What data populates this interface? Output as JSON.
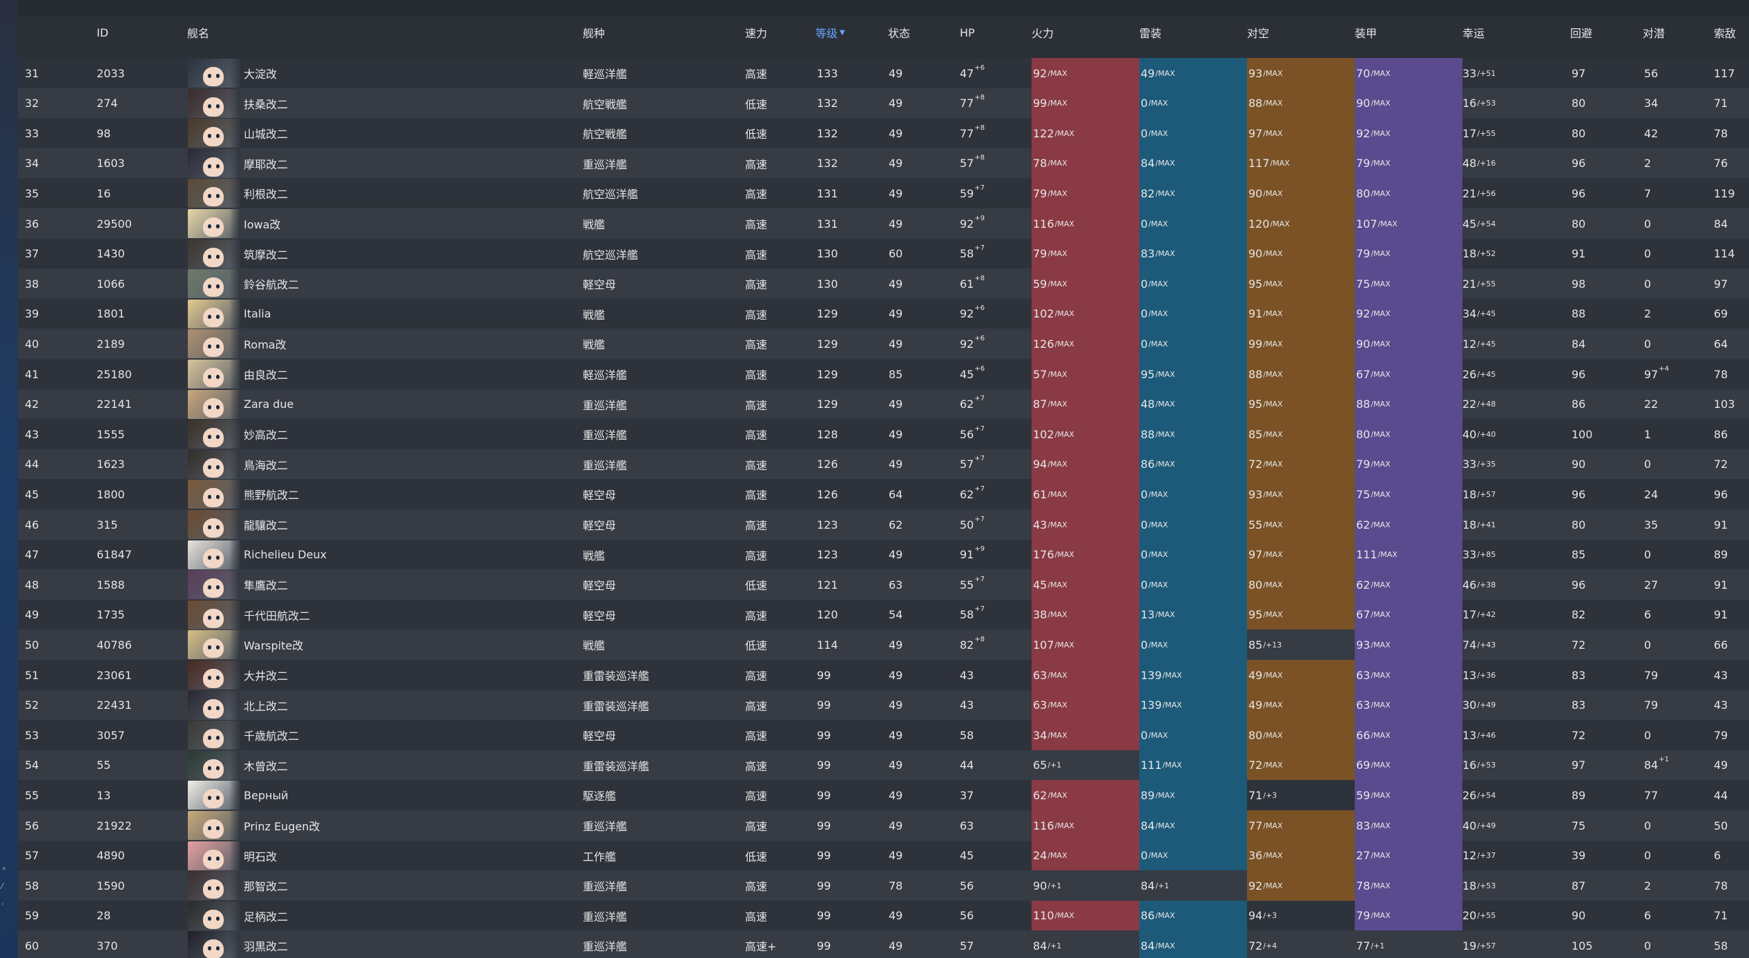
{
  "colors": {
    "page_bg": "#2b2f36",
    "row_odd": "#2e323a",
    "row_even": "#363b44",
    "accent_sort": "#6aa7ff",
    "firepower_max_bg": "#8a3a44",
    "torpedo_max_bg": "#1d5a7a",
    "antiair_max_bg": "#7a5226",
    "armor_max_bg": "#5a4a8e"
  },
  "table": {
    "headers": {
      "id": "ID",
      "name": "舰名",
      "type": "舰种",
      "speed": "速力",
      "level": "等级",
      "condition": "状态",
      "hp": "HP",
      "firepower": "火力",
      "torpedo": "雷装",
      "antiair": "对空",
      "armor": "装甲",
      "luck": "幸运",
      "evasion": "回避",
      "asw": "对潜",
      "los": "索敌"
    },
    "sort_column": "level",
    "sort_icon": "caret-down-icon",
    "rows": [
      {
        "no": "31",
        "id": "2033",
        "name": "大淀改",
        "type": "軽巡洋艦",
        "speed": "高速",
        "level": "133",
        "cond": "49",
        "hp": "47",
        "hp_sup": "+6",
        "fp": "92",
        "fp_s": "/MAX",
        "fp_max": true,
        "tp": "49",
        "tp_s": "/MAX",
        "tp_max": true,
        "aa": "93",
        "aa_s": "/MAX",
        "aa_max": true,
        "ar": "70",
        "ar_s": "/MAX",
        "ar_max": true,
        "luck": "33",
        "luck_s": "/+51",
        "ev": "97",
        "asw": "56",
        "asw_sup": "",
        "los": "117"
      },
      {
        "no": "32",
        "id": "274",
        "name": "扶桑改二",
        "type": "航空戦艦",
        "speed": "低速",
        "level": "132",
        "cond": "49",
        "hp": "77",
        "hp_sup": "+8",
        "fp": "99",
        "fp_s": "/MAX",
        "fp_max": true,
        "tp": "0",
        "tp_s": "/MAX",
        "tp_max": true,
        "aa": "88",
        "aa_s": "/MAX",
        "aa_max": true,
        "ar": "90",
        "ar_s": "/MAX",
        "ar_max": true,
        "luck": "16",
        "luck_s": "/+53",
        "ev": "80",
        "asw": "34",
        "asw_sup": "",
        "los": "71"
      },
      {
        "no": "33",
        "id": "98",
        "name": "山城改二",
        "type": "航空戦艦",
        "speed": "低速",
        "level": "132",
        "cond": "49",
        "hp": "77",
        "hp_sup": "+8",
        "fp": "122",
        "fp_s": "/MAX",
        "fp_max": true,
        "tp": "0",
        "tp_s": "/MAX",
        "tp_max": true,
        "aa": "97",
        "aa_s": "/MAX",
        "aa_max": true,
        "ar": "92",
        "ar_s": "/MAX",
        "ar_max": true,
        "luck": "17",
        "luck_s": "/+55",
        "ev": "80",
        "asw": "42",
        "asw_sup": "",
        "los": "78"
      },
      {
        "no": "34",
        "id": "1603",
        "name": "摩耶改二",
        "type": "重巡洋艦",
        "speed": "高速",
        "level": "132",
        "cond": "49",
        "hp": "57",
        "hp_sup": "+8",
        "fp": "78",
        "fp_s": "/MAX",
        "fp_max": true,
        "tp": "84",
        "tp_s": "/MAX",
        "tp_max": true,
        "aa": "117",
        "aa_s": "/MAX",
        "aa_max": true,
        "ar": "79",
        "ar_s": "/MAX",
        "ar_max": true,
        "luck": "48",
        "luck_s": "/+16",
        "ev": "96",
        "asw": "2",
        "asw_sup": "",
        "los": "76"
      },
      {
        "no": "35",
        "id": "16",
        "name": "利根改二",
        "type": "航空巡洋艦",
        "speed": "高速",
        "level": "131",
        "cond": "49",
        "hp": "59",
        "hp_sup": "+7",
        "fp": "79",
        "fp_s": "/MAX",
        "fp_max": true,
        "tp": "82",
        "tp_s": "/MAX",
        "tp_max": true,
        "aa": "90",
        "aa_s": "/MAX",
        "aa_max": true,
        "ar": "80",
        "ar_s": "/MAX",
        "ar_max": true,
        "luck": "21",
        "luck_s": "/+56",
        "ev": "96",
        "asw": "7",
        "asw_sup": "",
        "los": "119"
      },
      {
        "no": "36",
        "id": "29500",
        "name": "Iowa改",
        "type": "戦艦",
        "speed": "高速",
        "level": "131",
        "cond": "49",
        "hp": "92",
        "hp_sup": "+9",
        "fp": "116",
        "fp_s": "/MAX",
        "fp_max": true,
        "tp": "0",
        "tp_s": "/MAX",
        "tp_max": true,
        "aa": "120",
        "aa_s": "/MAX",
        "aa_max": true,
        "ar": "107",
        "ar_s": "/MAX",
        "ar_max": true,
        "luck": "45",
        "luck_s": "/+54",
        "ev": "80",
        "asw": "0",
        "asw_sup": "",
        "los": "84"
      },
      {
        "no": "37",
        "id": "1430",
        "name": "筑摩改二",
        "type": "航空巡洋艦",
        "speed": "高速",
        "level": "130",
        "cond": "60",
        "hp": "58",
        "hp_sup": "+7",
        "fp": "79",
        "fp_s": "/MAX",
        "fp_max": true,
        "tp": "83",
        "tp_s": "/MAX",
        "tp_max": true,
        "aa": "90",
        "aa_s": "/MAX",
        "aa_max": true,
        "ar": "79",
        "ar_s": "/MAX",
        "ar_max": true,
        "luck": "18",
        "luck_s": "/+52",
        "ev": "91",
        "asw": "0",
        "asw_sup": "",
        "los": "114"
      },
      {
        "no": "38",
        "id": "1066",
        "name": "鈴谷航改二",
        "type": "軽空母",
        "speed": "高速",
        "level": "130",
        "cond": "49",
        "hp": "61",
        "hp_sup": "+8",
        "fp": "59",
        "fp_s": "/MAX",
        "fp_max": true,
        "tp": "0",
        "tp_s": "/MAX",
        "tp_max": true,
        "aa": "95",
        "aa_s": "/MAX",
        "aa_max": true,
        "ar": "75",
        "ar_s": "/MAX",
        "ar_max": true,
        "luck": "21",
        "luck_s": "/+55",
        "ev": "98",
        "asw": "0",
        "asw_sup": "",
        "los": "97"
      },
      {
        "no": "39",
        "id": "1801",
        "name": "Italia",
        "type": "戦艦",
        "speed": "高速",
        "level": "129",
        "cond": "49",
        "hp": "92",
        "hp_sup": "+6",
        "fp": "102",
        "fp_s": "/MAX",
        "fp_max": true,
        "tp": "0",
        "tp_s": "/MAX",
        "tp_max": true,
        "aa": "91",
        "aa_s": "/MAX",
        "aa_max": true,
        "ar": "92",
        "ar_s": "/MAX",
        "ar_max": true,
        "luck": "34",
        "luck_s": "/+45",
        "ev": "88",
        "asw": "2",
        "asw_sup": "",
        "los": "69"
      },
      {
        "no": "40",
        "id": "2189",
        "name": "Roma改",
        "type": "戦艦",
        "speed": "高速",
        "level": "129",
        "cond": "49",
        "hp": "92",
        "hp_sup": "+6",
        "fp": "126",
        "fp_s": "/MAX",
        "fp_max": true,
        "tp": "0",
        "tp_s": "/MAX",
        "tp_max": true,
        "aa": "99",
        "aa_s": "/MAX",
        "aa_max": true,
        "ar": "90",
        "ar_s": "/MAX",
        "ar_max": true,
        "luck": "12",
        "luck_s": "/+45",
        "ev": "84",
        "asw": "0",
        "asw_sup": "",
        "los": "64"
      },
      {
        "no": "41",
        "id": "25180",
        "name": "由良改二",
        "type": "軽巡洋艦",
        "speed": "高速",
        "level": "129",
        "cond": "85",
        "hp": "45",
        "hp_sup": "+6",
        "fp": "57",
        "fp_s": "/MAX",
        "fp_max": true,
        "tp": "95",
        "tp_s": "/MAX",
        "tp_max": true,
        "aa": "88",
        "aa_s": "/MAX",
        "aa_max": true,
        "ar": "67",
        "ar_s": "/MAX",
        "ar_max": true,
        "luck": "26",
        "luck_s": "/+45",
        "ev": "96",
        "asw": "97",
        "asw_sup": "+4",
        "los": "78"
      },
      {
        "no": "42",
        "id": "22141",
        "name": "Zara due",
        "type": "重巡洋艦",
        "speed": "高速",
        "level": "129",
        "cond": "49",
        "hp": "62",
        "hp_sup": "+7",
        "fp": "87",
        "fp_s": "/MAX",
        "fp_max": true,
        "tp": "48",
        "tp_s": "/MAX",
        "tp_max": true,
        "aa": "95",
        "aa_s": "/MAX",
        "aa_max": true,
        "ar": "88",
        "ar_s": "/MAX",
        "ar_max": true,
        "luck": "22",
        "luck_s": "/+48",
        "ev": "86",
        "asw": "22",
        "asw_sup": "",
        "los": "103"
      },
      {
        "no": "43",
        "id": "1555",
        "name": "妙高改二",
        "type": "重巡洋艦",
        "speed": "高速",
        "level": "128",
        "cond": "49",
        "hp": "56",
        "hp_sup": "+7",
        "fp": "102",
        "fp_s": "/MAX",
        "fp_max": true,
        "tp": "88",
        "tp_s": "/MAX",
        "tp_max": true,
        "aa": "85",
        "aa_s": "/MAX",
        "aa_max": true,
        "ar": "80",
        "ar_s": "/MAX",
        "ar_max": true,
        "luck": "40",
        "luck_s": "/+40",
        "ev": "100",
        "asw": "1",
        "asw_sup": "",
        "los": "86"
      },
      {
        "no": "44",
        "id": "1623",
        "name": "鳥海改二",
        "type": "重巡洋艦",
        "speed": "高速",
        "level": "126",
        "cond": "49",
        "hp": "57",
        "hp_sup": "+7",
        "fp": "94",
        "fp_s": "/MAX",
        "fp_max": true,
        "tp": "86",
        "tp_s": "/MAX",
        "tp_max": true,
        "aa": "72",
        "aa_s": "/MAX",
        "aa_max": true,
        "ar": "79",
        "ar_s": "/MAX",
        "ar_max": true,
        "luck": "33",
        "luck_s": "/+35",
        "ev": "90",
        "asw": "0",
        "asw_sup": "",
        "los": "72"
      },
      {
        "no": "45",
        "id": "1800",
        "name": "熊野航改二",
        "type": "軽空母",
        "speed": "高速",
        "level": "126",
        "cond": "64",
        "hp": "62",
        "hp_sup": "+7",
        "fp": "61",
        "fp_s": "/MAX",
        "fp_max": true,
        "tp": "0",
        "tp_s": "/MAX",
        "tp_max": true,
        "aa": "93",
        "aa_s": "/MAX",
        "aa_max": true,
        "ar": "75",
        "ar_s": "/MAX",
        "ar_max": true,
        "luck": "18",
        "luck_s": "/+57",
        "ev": "96",
        "asw": "24",
        "asw_sup": "",
        "los": "96"
      },
      {
        "no": "46",
        "id": "315",
        "name": "龍驤改二",
        "type": "軽空母",
        "speed": "高速",
        "level": "123",
        "cond": "62",
        "hp": "50",
        "hp_sup": "+7",
        "fp": "43",
        "fp_s": "/MAX",
        "fp_max": true,
        "tp": "0",
        "tp_s": "/MAX",
        "tp_max": true,
        "aa": "55",
        "aa_s": "/MAX",
        "aa_max": true,
        "ar": "62",
        "ar_s": "/MAX",
        "ar_max": true,
        "luck": "18",
        "luck_s": "/+41",
        "ev": "80",
        "asw": "35",
        "asw_sup": "",
        "los": "91"
      },
      {
        "no": "47",
        "id": "61847",
        "name": "Richelieu Deux",
        "type": "戦艦",
        "speed": "高速",
        "level": "123",
        "cond": "49",
        "hp": "91",
        "hp_sup": "+9",
        "fp": "176",
        "fp_s": "/MAX",
        "fp_max": true,
        "tp": "0",
        "tp_s": "/MAX",
        "tp_max": true,
        "aa": "97",
        "aa_s": "/MAX",
        "aa_max": true,
        "ar": "111",
        "ar_s": "/MAX",
        "ar_max": true,
        "luck": "33",
        "luck_s": "/+85",
        "ev": "85",
        "asw": "0",
        "asw_sup": "",
        "los": "89"
      },
      {
        "no": "48",
        "id": "1588",
        "name": "隼鷹改二",
        "type": "軽空母",
        "speed": "低速",
        "level": "121",
        "cond": "63",
        "hp": "55",
        "hp_sup": "+7",
        "fp": "45",
        "fp_s": "/MAX",
        "fp_max": true,
        "tp": "0",
        "tp_s": "/MAX",
        "tp_max": true,
        "aa": "80",
        "aa_s": "/MAX",
        "aa_max": true,
        "ar": "62",
        "ar_s": "/MAX",
        "ar_max": true,
        "luck": "46",
        "luck_s": "/+38",
        "ev": "96",
        "asw": "27",
        "asw_sup": "",
        "los": "91"
      },
      {
        "no": "49",
        "id": "1735",
        "name": "千代田航改二",
        "type": "軽空母",
        "speed": "高速",
        "level": "120",
        "cond": "54",
        "hp": "58",
        "hp_sup": "+7",
        "fp": "38",
        "fp_s": "/MAX",
        "fp_max": true,
        "tp": "13",
        "tp_s": "/MAX",
        "tp_max": true,
        "aa": "95",
        "aa_s": "/MAX",
        "aa_max": true,
        "ar": "67",
        "ar_s": "/MAX",
        "ar_max": true,
        "luck": "17",
        "luck_s": "/+42",
        "ev": "82",
        "asw": "6",
        "asw_sup": "",
        "los": "91"
      },
      {
        "no": "50",
        "id": "40786",
        "name": "Warspite改",
        "type": "戦艦",
        "speed": "低速",
        "level": "114",
        "cond": "49",
        "hp": "82",
        "hp_sup": "+8",
        "fp": "107",
        "fp_s": "/MAX",
        "fp_max": true,
        "tp": "0",
        "tp_s": "/MAX",
        "tp_max": true,
        "aa": "85",
        "aa_s": "/+13",
        "aa_max": false,
        "ar": "93",
        "ar_s": "/MAX",
        "ar_max": true,
        "luck": "74",
        "luck_s": "/+43",
        "ev": "72",
        "asw": "0",
        "asw_sup": "",
        "los": "66"
      },
      {
        "no": "51",
        "id": "23061",
        "name": "大井改二",
        "type": "重雷装巡洋艦",
        "speed": "高速",
        "level": "99",
        "cond": "49",
        "hp": "43",
        "hp_sup": "",
        "fp": "63",
        "fp_s": "/MAX",
        "fp_max": true,
        "tp": "139",
        "tp_s": "/MAX",
        "tp_max": true,
        "aa": "49",
        "aa_s": "/MAX",
        "aa_max": true,
        "ar": "63",
        "ar_s": "/MAX",
        "ar_max": true,
        "luck": "13",
        "luck_s": "/+36",
        "ev": "83",
        "asw": "79",
        "asw_sup": "",
        "los": "43"
      },
      {
        "no": "52",
        "id": "22431",
        "name": "北上改二",
        "type": "重雷装巡洋艦",
        "speed": "高速",
        "level": "99",
        "cond": "49",
        "hp": "43",
        "hp_sup": "",
        "fp": "63",
        "fp_s": "/MAX",
        "fp_max": true,
        "tp": "139",
        "tp_s": "/MAX",
        "tp_max": true,
        "aa": "49",
        "aa_s": "/MAX",
        "aa_max": true,
        "ar": "63",
        "ar_s": "/MAX",
        "ar_max": true,
        "luck": "30",
        "luck_s": "/+49",
        "ev": "83",
        "asw": "79",
        "asw_sup": "",
        "los": "43"
      },
      {
        "no": "53",
        "id": "3057",
        "name": "千歳航改二",
        "type": "軽空母",
        "speed": "高速",
        "level": "99",
        "cond": "49",
        "hp": "58",
        "hp_sup": "",
        "fp": "34",
        "fp_s": "/MAX",
        "fp_max": true,
        "tp": "0",
        "tp_s": "/MAX",
        "tp_max": true,
        "aa": "80",
        "aa_s": "/MAX",
        "aa_max": true,
        "ar": "66",
        "ar_s": "/MAX",
        "ar_max": true,
        "luck": "13",
        "luck_s": "/+46",
        "ev": "72",
        "asw": "0",
        "asw_sup": "",
        "los": "79"
      },
      {
        "no": "54",
        "id": "55",
        "name": "木曾改二",
        "type": "重雷装巡洋艦",
        "speed": "高速",
        "level": "99",
        "cond": "49",
        "hp": "44",
        "hp_sup": "",
        "fp": "65",
        "fp_s": "/+1",
        "fp_max": false,
        "tp": "111",
        "tp_s": "/MAX",
        "tp_max": true,
        "aa": "72",
        "aa_s": "/MAX",
        "aa_max": true,
        "ar": "69",
        "ar_s": "/MAX",
        "ar_max": true,
        "luck": "16",
        "luck_s": "/+53",
        "ev": "97",
        "asw": "84",
        "asw_sup": "+1",
        "los": "49"
      },
      {
        "no": "55",
        "id": "13",
        "name": "Верный",
        "type": "駆逐艦",
        "speed": "高速",
        "level": "99",
        "cond": "49",
        "hp": "37",
        "hp_sup": "",
        "fp": "62",
        "fp_s": "/MAX",
        "fp_max": true,
        "tp": "89",
        "tp_s": "/MAX",
        "tp_max": true,
        "aa": "71",
        "aa_s": "/+3",
        "aa_max": false,
        "ar": "59",
        "ar_s": "/MAX",
        "ar_max": true,
        "luck": "26",
        "luck_s": "/+54",
        "ev": "89",
        "asw": "77",
        "asw_sup": "",
        "los": "44"
      },
      {
        "no": "56",
        "id": "21922",
        "name": "Prinz Eugen改",
        "type": "重巡洋艦",
        "speed": "高速",
        "level": "99",
        "cond": "49",
        "hp": "63",
        "hp_sup": "",
        "fp": "116",
        "fp_s": "/MAX",
        "fp_max": true,
        "tp": "84",
        "tp_s": "/MAX",
        "tp_max": true,
        "aa": "77",
        "aa_s": "/MAX",
        "aa_max": true,
        "ar": "83",
        "ar_s": "/MAX",
        "ar_max": true,
        "luck": "40",
        "luck_s": "/+49",
        "ev": "75",
        "asw": "0",
        "asw_sup": "",
        "los": "50"
      },
      {
        "no": "57",
        "id": "4890",
        "name": "明石改",
        "type": "工作艦",
        "speed": "低速",
        "level": "99",
        "cond": "49",
        "hp": "45",
        "hp_sup": "",
        "fp": "24",
        "fp_s": "/MAX",
        "fp_max": true,
        "tp": "0",
        "tp_s": "/MAX",
        "tp_max": true,
        "aa": "36",
        "aa_s": "/MAX",
        "aa_max": true,
        "ar": "27",
        "ar_s": "/MAX",
        "ar_max": true,
        "luck": "12",
        "luck_s": "/+37",
        "ev": "39",
        "asw": "0",
        "asw_sup": "",
        "los": "6"
      },
      {
        "no": "58",
        "id": "1590",
        "name": "那智改二",
        "type": "重巡洋艦",
        "speed": "高速",
        "level": "99",
        "cond": "78",
        "hp": "56",
        "hp_sup": "",
        "fp": "90",
        "fp_s": "/+1",
        "fp_max": false,
        "tp": "84",
        "tp_s": "/+1",
        "tp_max": false,
        "aa": "92",
        "aa_s": "/MAX",
        "aa_max": true,
        "ar": "78",
        "ar_s": "/MAX",
        "ar_max": true,
        "luck": "18",
        "luck_s": "/+53",
        "ev": "87",
        "asw": "2",
        "asw_sup": "",
        "los": "78"
      },
      {
        "no": "59",
        "id": "28",
        "name": "足柄改二",
        "type": "重巡洋艦",
        "speed": "高速",
        "level": "99",
        "cond": "49",
        "hp": "56",
        "hp_sup": "",
        "fp": "110",
        "fp_s": "/MAX",
        "fp_max": true,
        "tp": "86",
        "tp_s": "/MAX",
        "tp_max": true,
        "aa": "94",
        "aa_s": "/+3",
        "aa_max": false,
        "ar": "79",
        "ar_s": "/MAX",
        "ar_max": true,
        "luck": "20",
        "luck_s": "/+55",
        "ev": "90",
        "asw": "6",
        "asw_sup": "",
        "los": "71"
      },
      {
        "no": "60",
        "id": "370",
        "name": "羽黒改二",
        "type": "重巡洋艦",
        "speed": "高速+",
        "level": "99",
        "cond": "49",
        "hp": "57",
        "hp_sup": "",
        "fp": "84",
        "fp_s": "/+1",
        "fp_max": false,
        "tp": "84",
        "tp_s": "/MAX",
        "tp_max": true,
        "aa": "72",
        "aa_s": "/+4",
        "aa_max": false,
        "ar": "77",
        "ar_s": "/+1",
        "ar_max": false,
        "luck": "19",
        "luck_s": "/+57",
        "ev": "105",
        "asw": "0",
        "asw_sup": "",
        "los": "58"
      }
    ]
  }
}
